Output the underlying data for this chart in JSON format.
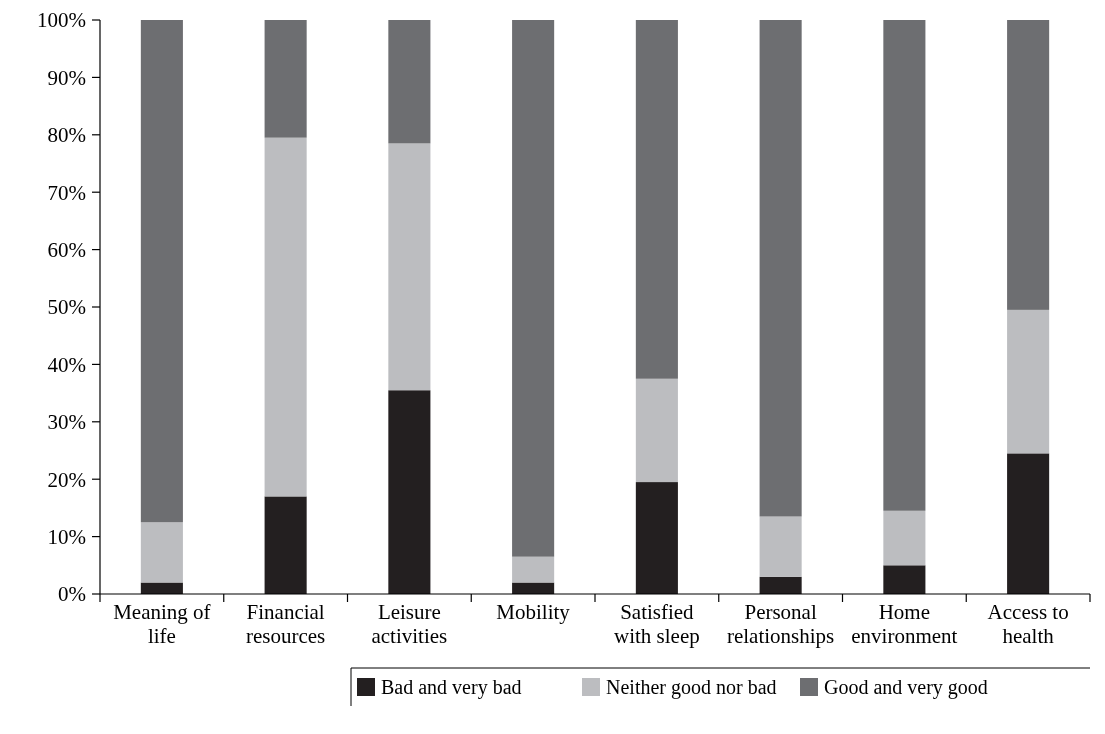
{
  "chart_data": {
    "type": "bar",
    "stacked": true,
    "categories": [
      "Meaning of life",
      "Financial resources",
      "Leisure activities",
      "Mobility",
      "Satisfied with sleep",
      "Personal relationships",
      "Home environment",
      "Access to health"
    ],
    "series": [
      {
        "name": "Bad and very bad",
        "color": "#231f20",
        "values": [
          2,
          17,
          35.5,
          2,
          19.5,
          3,
          5,
          24.5
        ]
      },
      {
        "name": "Neither good nor bad",
        "color": "#bcbdc0",
        "values": [
          10.5,
          62.5,
          43,
          4.5,
          18,
          10.5,
          9.5,
          25
        ]
      },
      {
        "name": "Good and very good",
        "color": "#6d6e71",
        "values": [
          87.5,
          20.5,
          21.5,
          93.5,
          62.5,
          86.5,
          85.5,
          50.5
        ]
      }
    ],
    "ylim": [
      0,
      100
    ],
    "yticks": [
      {
        "value": 0,
        "label": "0%"
      },
      {
        "value": 10,
        "label": "10%"
      },
      {
        "value": 20,
        "label": "20%"
      },
      {
        "value": 30,
        "label": "30%"
      },
      {
        "value": 40,
        "label": "40%"
      },
      {
        "value": 50,
        "label": "50%"
      },
      {
        "value": 60,
        "label": "60%"
      },
      {
        "value": 70,
        "label": "70%"
      },
      {
        "value": 80,
        "label": "80%"
      },
      {
        "value": 90,
        "label": "90%"
      },
      {
        "value": 100,
        "label": "100%"
      }
    ],
    "legend": "bottom right"
  }
}
